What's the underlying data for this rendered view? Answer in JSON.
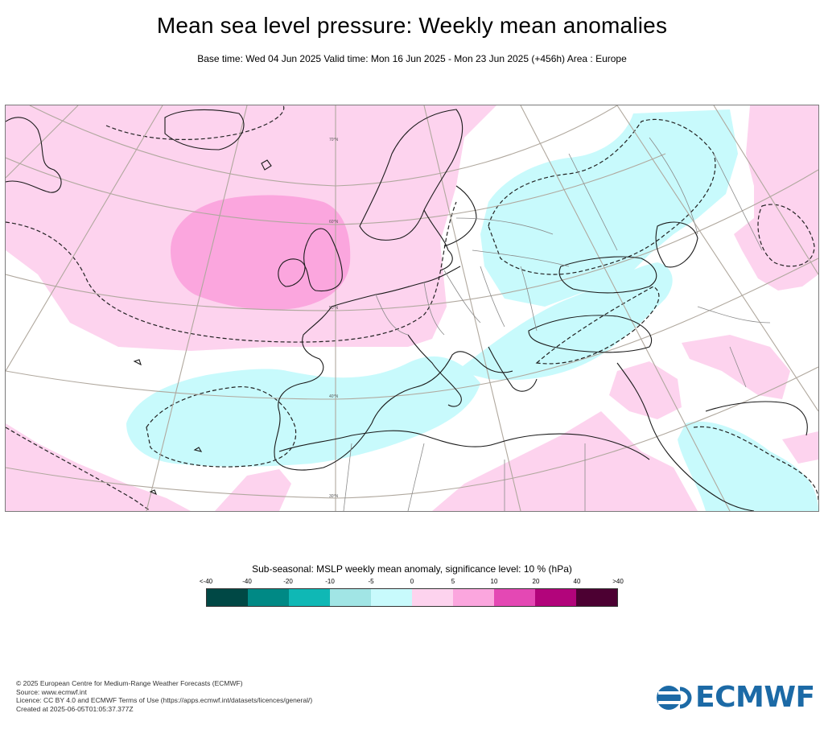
{
  "header": {
    "title": "Mean sea level pressure: Weekly mean anomalies",
    "subtitle": "Base time: Wed 04 Jun 2025 Valid time: Mon 16 Jun 2025 - Mon 23 Jun 2025 (+456h) Area : Europe"
  },
  "map": {
    "latitude_labels": [
      "70°N",
      "60°N",
      "50°N",
      "40°N",
      "30°N"
    ],
    "colors": {
      "land_line": "#1a1a1a",
      "border_line": "#9a9a9a",
      "grid_line": "#b0a89e",
      "pos_5_10": "#fdd3ee",
      "pos_10_20": "#fba6de",
      "neg_0_5": "#c8fafc"
    }
  },
  "legend": {
    "title": "Sub-seasonal: MSLP weekly mean anomaly, significance level: 10 % (hPa)",
    "ticks": [
      "<-40",
      "-40",
      "-20",
      "-10",
      "-5",
      "0",
      "5",
      "10",
      "20",
      "40",
      ">40"
    ],
    "colors": [
      "#004845",
      "#008985",
      "#0fb8b5",
      "#a1e5e5",
      "#c8fafc",
      "#fdd3ee",
      "#fba6de",
      "#e448b4",
      "#b2047b",
      "#4c0032"
    ]
  },
  "footer": {
    "lines": [
      "© 2025 European Centre for Medium-Range Weather Forecasts (ECMWF)",
      "Source: www.ecmwf.int",
      "Licence: CC BY 4.0 and ECMWF Terms of Use (https://apps.ecmwf.int/datasets/licences/general/)",
      "Created at 2025-06-05T01:05:37.377Z"
    ]
  },
  "logo": {
    "text": "ECMWF",
    "icon": "ecmwf-logo-icon",
    "color": "#1c6aa6"
  }
}
